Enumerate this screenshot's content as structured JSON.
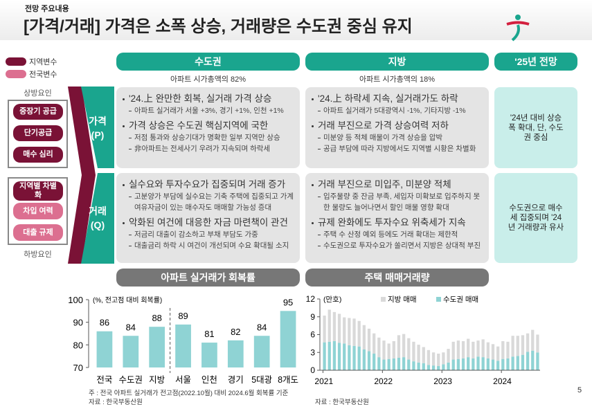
{
  "header": {
    "kicker": "전망 주요내용",
    "title": "[가격/거래] 가격은 소폭 상승, 거래량은 수도권 중심 유지"
  },
  "legend": [
    "지역변수",
    "전국변수"
  ],
  "factors": {
    "upper_label": "상방요인",
    "upper": [
      "중장기 공급",
      "단기공급",
      "매수 심리"
    ],
    "lower": [
      "지역별 차별화",
      "차입 여력",
      "대출 규제"
    ],
    "lower_label": "하방요인"
  },
  "columns": [
    {
      "title": "수도권",
      "note": "아파트 시가총액의 82%"
    },
    {
      "title": "지방",
      "note": "아파트 시가총액의 18%"
    },
    {
      "title": "'25년 전망"
    }
  ],
  "rows": [
    {
      "label": "가격 (P)",
      "cells": [
        [
          {
            "head": "'24.上 완만한 회복, 실거래 가격 상승",
            "subs": [
              "아파트 실거래가 서울 +3%, 경기 +1%, 인천 +1%"
            ]
          },
          {
            "head": "가격 상승은 수도권 핵심지역에 국한",
            "subs": [
              "저점 통과와 상승기대가 명확한 일부 지역만 상승",
              "非아파트는 전세사기 우려가 지속되며 하락세"
            ]
          }
        ],
        [
          {
            "head": "'24.上 하락세 지속, 실거래가도 하락",
            "subs": [
              "아파트 실거래가 5대광역시 -1%, 기타지방 -1%"
            ]
          },
          {
            "head": "거래 부진으로 가격 상승여력 저하",
            "subs": [
              "미분양 등 적체 매물이 가격 상승을 압박",
              "공급 부담에 따라 지방에서도 지역별 시황은 차별화"
            ]
          }
        ]
      ],
      "outlook": "'24년 대비 상승폭 확대, 단, 수도권 중심"
    },
    {
      "label": "거래 (Q)",
      "cells": [
        [
          {
            "head": "실수요와 투자수요가 집중되며 거래 증가",
            "subs": [
              "고분양가 부담에 실수요는 기축 주택에 집중되고 가계 여유자금이 있는 매수자도 매매할 가능성 증대"
            ]
          },
          {
            "head": "악화된 여건에 대응한 자금 마련책이 관건",
            "subs": [
              "저금리 대출이 감소하고 부채 부담도 가중",
              "대출금리 하락 시 여건이 개선되며 수요 확대될 소지"
            ]
          }
        ],
        [
          {
            "head": "거래 부진으로 미입주, 미분양 적체",
            "subs": [
              "입주물량 중 잔금 부족, 세입자 미확보로 입주하지 못한 물량도 늘어나면서 할인 매물 영향 확대"
            ]
          },
          {
            "head": "규제 완화에도 투자수요 위축세가 지속",
            "subs": [
              "주택 수 산정 예외 등에도 거래 확대는 제한적",
              "수도권으로 투자수요가 쏠리면서 지방은 상대적 부진"
            ]
          }
        ]
      ],
      "outlook": "수도권으로 매수세 집중되며 '24년 거래량과 유사"
    }
  ],
  "chart_data": [
    {
      "type": "bar",
      "title": "아파트 실거래가 회복률",
      "ylabel": "(%, 전고점 대비 회복률)",
      "categories": [
        "전국",
        "수도권",
        "지방",
        "서울",
        "인천",
        "경기",
        "5대광",
        "8개도"
      ],
      "values": [
        86,
        84,
        88,
        89,
        81,
        82,
        84,
        95
      ],
      "color": "#8fd3d4",
      "ylim": [
        70,
        100
      ],
      "yticks": [
        70,
        80,
        90,
        100
      ],
      "notes": [
        "주 : 전국 아파트 실거래가 전고점(2022.10월) 대비 2024.6월 회복률 기준",
        "자료 : 한국부동산원"
      ]
    },
    {
      "type": "stacked_bar",
      "title": "주택 매매거래량",
      "ylabel": "(만호)",
      "categories": [
        "2021",
        null,
        null,
        null,
        null,
        null,
        null,
        null,
        null,
        null,
        null,
        null,
        "2022",
        null,
        null,
        null,
        null,
        null,
        null,
        null,
        null,
        null,
        null,
        null,
        "2023",
        null,
        null,
        null,
        null,
        null,
        null,
        null,
        null,
        null,
        null,
        null,
        "2024",
        null,
        null,
        null,
        null,
        null,
        null,
        null
      ],
      "series": [
        {
          "name": "수도권 매매",
          "color": "#8fd3d4",
          "values": [
            4.7,
            4.8,
            4.9,
            4.6,
            4.5,
            4.2,
            4.1,
            4.0,
            3.5,
            3.2,
            2.8,
            2.2,
            1.8,
            1.9,
            2.0,
            2.1,
            2.2,
            1.8,
            1.5,
            1.3,
            1.2,
            0.9,
            0.8,
            0.7,
            1.0,
            1.3,
            1.8,
            1.9,
            2.0,
            2.2,
            2.0,
            2.3,
            2.2,
            2.0,
            1.8,
            1.6,
            1.9,
            2.0,
            2.3,
            2.4,
            2.6,
            3.1,
            3.3,
            3.0
          ]
        },
        {
          "name": "지방 매매",
          "color": "#d9d9d9",
          "values": [
            4.5,
            5.4,
            4.9,
            4.9,
            4.4,
            4.6,
            4.6,
            4.3,
            4.1,
            3.8,
            3.4,
            3.3,
            3.2,
            2.6,
            2.9,
            3.8,
            3.9,
            3.6,
            3.3,
            3.0,
            2.7,
            2.5,
            2.2,
            2.1,
            2.0,
            2.3,
            3.0,
            3.1,
            2.9,
            3.1,
            2.8,
            2.7,
            3.0,
            2.7,
            2.6,
            2.4,
            3.0,
            2.8,
            3.5,
            3.4,
            3.3,
            3.1,
            3.5,
            3.0
          ]
        }
      ],
      "ylim": [
        0,
        12
      ],
      "yticks": [
        0,
        3,
        6,
        9,
        12
      ],
      "notes": [
        "자료 : 한국부동산원"
      ]
    }
  ],
  "page_number": "5"
}
